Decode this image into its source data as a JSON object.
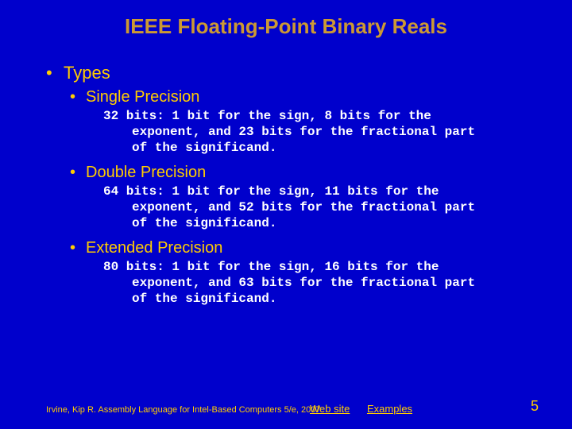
{
  "colors": {
    "background": "#0000cc",
    "title": "#cc9933",
    "body_text": "#ffcc00",
    "detail_text": "#ffffff",
    "link": "#ffcc00",
    "footer_cite": "#ffcc00",
    "page_num": "#ffcc00"
  },
  "title": "IEEE Floating-Point Binary Reals",
  "types_label": "Types",
  "sections": {
    "single": {
      "heading": "Single Precision",
      "detail": "32 bits: 1 bit for the sign, 8 bits for the exponent, and 23 bits for the fractional part of the significand."
    },
    "double": {
      "heading": "Double Precision",
      "detail": "64 bits: 1 bit for the sign, 11 bits for the exponent, and 52 bits for the fractional part of the significand."
    },
    "extended": {
      "heading": "Extended Precision",
      "detail": "80 bits: 1 bit for the sign, 16 bits for the exponent, and 63 bits for the fractional part of the significand."
    }
  },
  "footer": {
    "citation": "Irvine, Kip R. Assembly Language for Intel-Based Computers 5/e, 2007.",
    "link_website": "Web site",
    "link_examples": "Examples",
    "page_number": "5"
  }
}
